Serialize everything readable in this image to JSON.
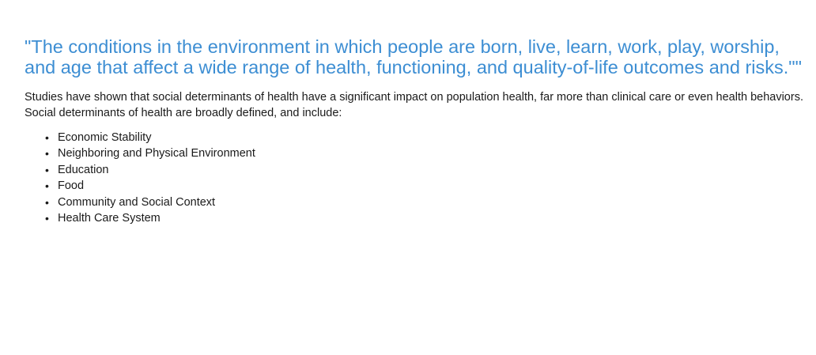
{
  "quote": "\"The conditions in the environment in which people are born, live, learn, work, play, worship, and age that affect a wide range of health, functioning, and quality-of-life outcomes and risks.\"\"",
  "intro": "Studies have shown that social determinants of health have a significant impact on population health, far more than clinical care or even health behaviors. Social determinants of health are broadly defined, and include:",
  "bullet_glyph": "•",
  "factors": [
    "Economic Stability",
    "Neighboring and Physical Environment",
    "Education",
    "Food",
    "Community and Social Context",
    "Health Care System"
  ],
  "colors": {
    "quote": "#3d8ed3",
    "body_text": "#1a1a1a",
    "background": "#ffffff"
  }
}
